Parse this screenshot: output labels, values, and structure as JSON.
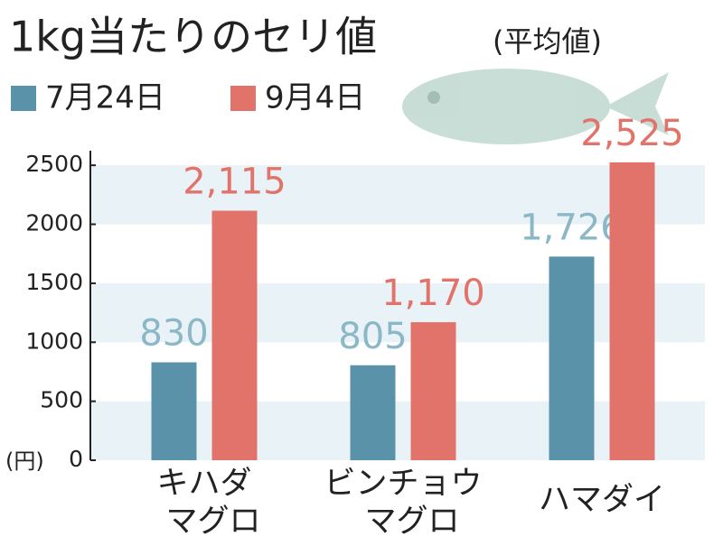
{
  "chart_data": {
    "type": "bar",
    "title": "1kg当たりのセリ値",
    "subtitle": "(平均値)",
    "unit_label": "(円)",
    "categories": [
      [
        "キハダ",
        "マグロ"
      ],
      [
        "ビンチョウ",
        "マグロ"
      ],
      [
        "ハマダイ"
      ]
    ],
    "series": [
      {
        "name": "7月24日",
        "color": "#5a93a9",
        "label_color": "#8bb7c7",
        "values": [
          830,
          805,
          1726
        ],
        "value_labels": [
          "830",
          "805",
          "1,726"
        ]
      },
      {
        "name": "9月4日",
        "color": "#e2736a",
        "label_color": "#e2736a",
        "values": [
          2115,
          1170,
          2525
        ],
        "value_labels": [
          "2,115",
          "1,170",
          "2,525"
        ]
      }
    ],
    "ylim": [
      0,
      2700
    ],
    "yticks": [
      0,
      500,
      1000,
      1500,
      2000,
      2500
    ],
    "grid": "bands"
  }
}
